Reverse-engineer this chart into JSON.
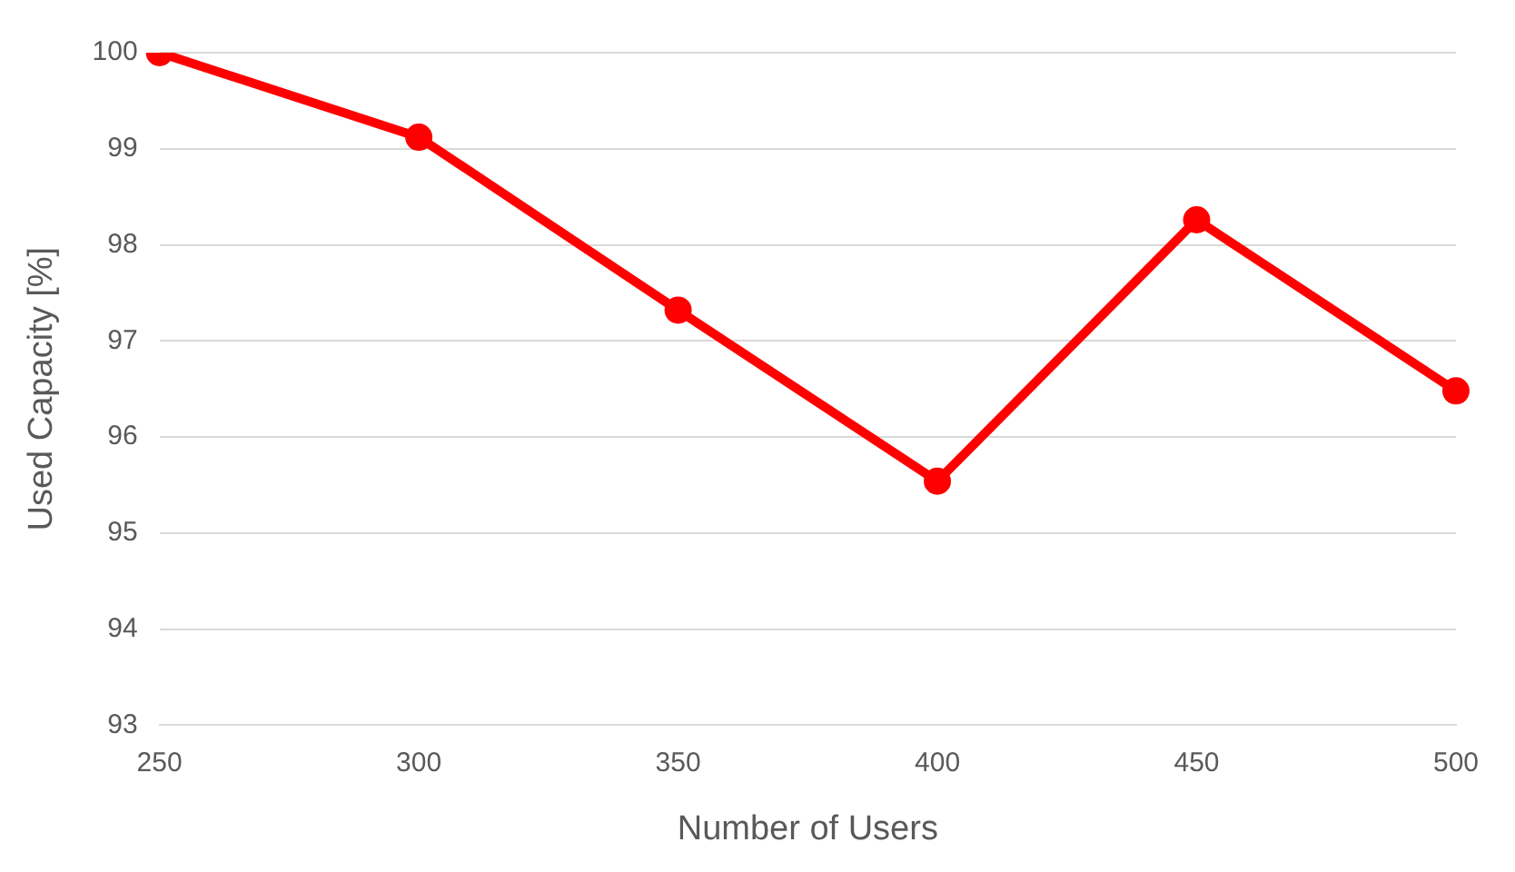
{
  "chart_data": {
    "type": "line",
    "xlabel": "Number of Users",
    "ylabel": "Used Capacity [%]",
    "categories": [
      "250",
      "300",
      "350",
      "400",
      "450",
      "500"
    ],
    "series": [
      {
        "color": "#ff0000",
        "values": [
          100,
          99.12,
          97.32,
          95.54,
          98.26,
          96.48
        ]
      }
    ],
    "ylim": [
      93,
      100
    ],
    "yticks": [
      93,
      94,
      95,
      96,
      97,
      98,
      99,
      100
    ],
    "grid": "y",
    "legend": false,
    "marker": "circle",
    "line_style": "solid"
  }
}
